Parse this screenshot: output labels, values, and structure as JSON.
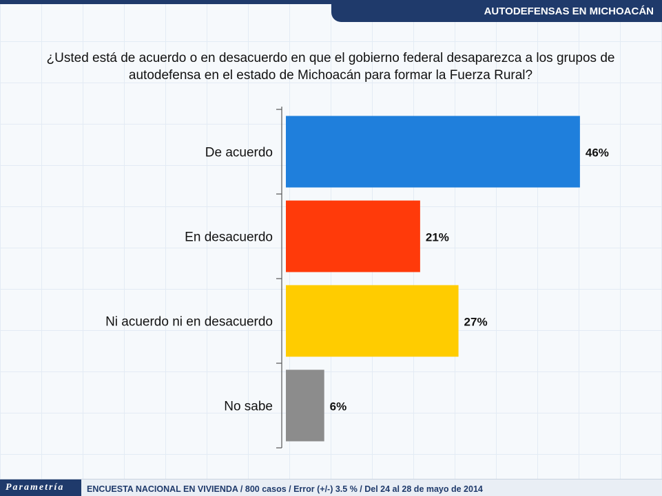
{
  "header": {
    "title": "AUTODEFENSAS EN MICHOACÁN"
  },
  "question": "¿Usted está de acuerdo o en desacuerdo en que el gobierno federal desaparezca a los grupos de autodefensa en el estado de Michoacán para formar la Fuerza Rural?",
  "footer": {
    "logo": "Parametría",
    "note": "ENCUESTA NACIONAL EN VIVIENDA / 800 casos / Error (+/-) 3.5 % / Del 24 al 28 de mayo de 2014"
  },
  "chart_data": {
    "type": "bar",
    "orientation": "horizontal",
    "categories": [
      "De acuerdo",
      "En desacuerdo",
      "Ni acuerdo ni en desacuerdo",
      "No sabe"
    ],
    "values": [
      46,
      21,
      27,
      6
    ],
    "value_labels": [
      "46%",
      "21%",
      "27%",
      "6%"
    ],
    "colors": [
      "#1f7fdc",
      "#ff3a0a",
      "#ffcc00",
      "#8c8c8c"
    ],
    "unit": "%",
    "xlim": [
      0,
      50
    ],
    "grid": false,
    "legend": "none"
  }
}
